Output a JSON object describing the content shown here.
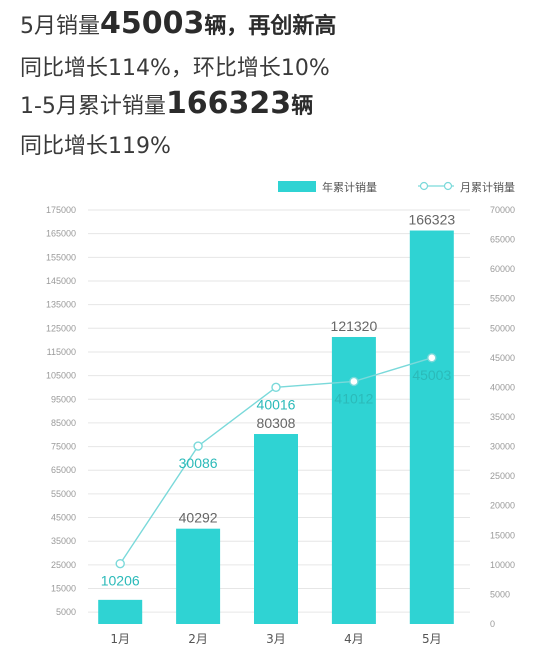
{
  "headline": {
    "line1_prefix": "5月销量",
    "line1_number": "45003",
    "line1_suffix": "辆，再创新高",
    "line2": "同比增长114%，环比增长10%",
    "line3_prefix": "1-5月累计销量",
    "line3_number": "166323",
    "line3_suffix": "辆",
    "line4": "同比增长119%"
  },
  "colors": {
    "bar": "#2fd3d3",
    "line": "#7ad9da",
    "line_label": "#2bbab9",
    "grid": "#e6e6e6"
  },
  "chart_data": {
    "type": "bar+line",
    "categories": [
      "1月",
      "2月",
      "3月",
      "4月",
      "5月"
    ],
    "series": [
      {
        "name": "年累计销量",
        "type": "bar",
        "axis": "left",
        "values": [
          10206,
          40292,
          80308,
          121320,
          166323
        ],
        "labels": [
          "",
          "40292",
          "80308",
          "121320",
          "166323"
        ]
      },
      {
        "name": "月累计销量",
        "type": "line",
        "axis": "right",
        "values": [
          10206,
          30086,
          40016,
          41012,
          45003
        ],
        "labels": [
          "10206",
          "30086",
          "40016",
          "41012",
          "45003"
        ]
      }
    ],
    "left_axis": {
      "ticks": [
        5000,
        15000,
        25000,
        35000,
        45000,
        55000,
        65000,
        75000,
        85000,
        95000,
        105000,
        115000,
        125000,
        135000,
        145000,
        155000,
        165000,
        175000
      ],
      "range": [
        0,
        175000
      ]
    },
    "right_axis": {
      "ticks": [
        0,
        5000,
        10000,
        15000,
        20000,
        25000,
        30000,
        35000,
        40000,
        45000,
        50000,
        55000,
        60000,
        65000,
        70000
      ],
      "range": [
        0,
        70000
      ]
    },
    "legend_position": "top-right",
    "grid": true
  }
}
